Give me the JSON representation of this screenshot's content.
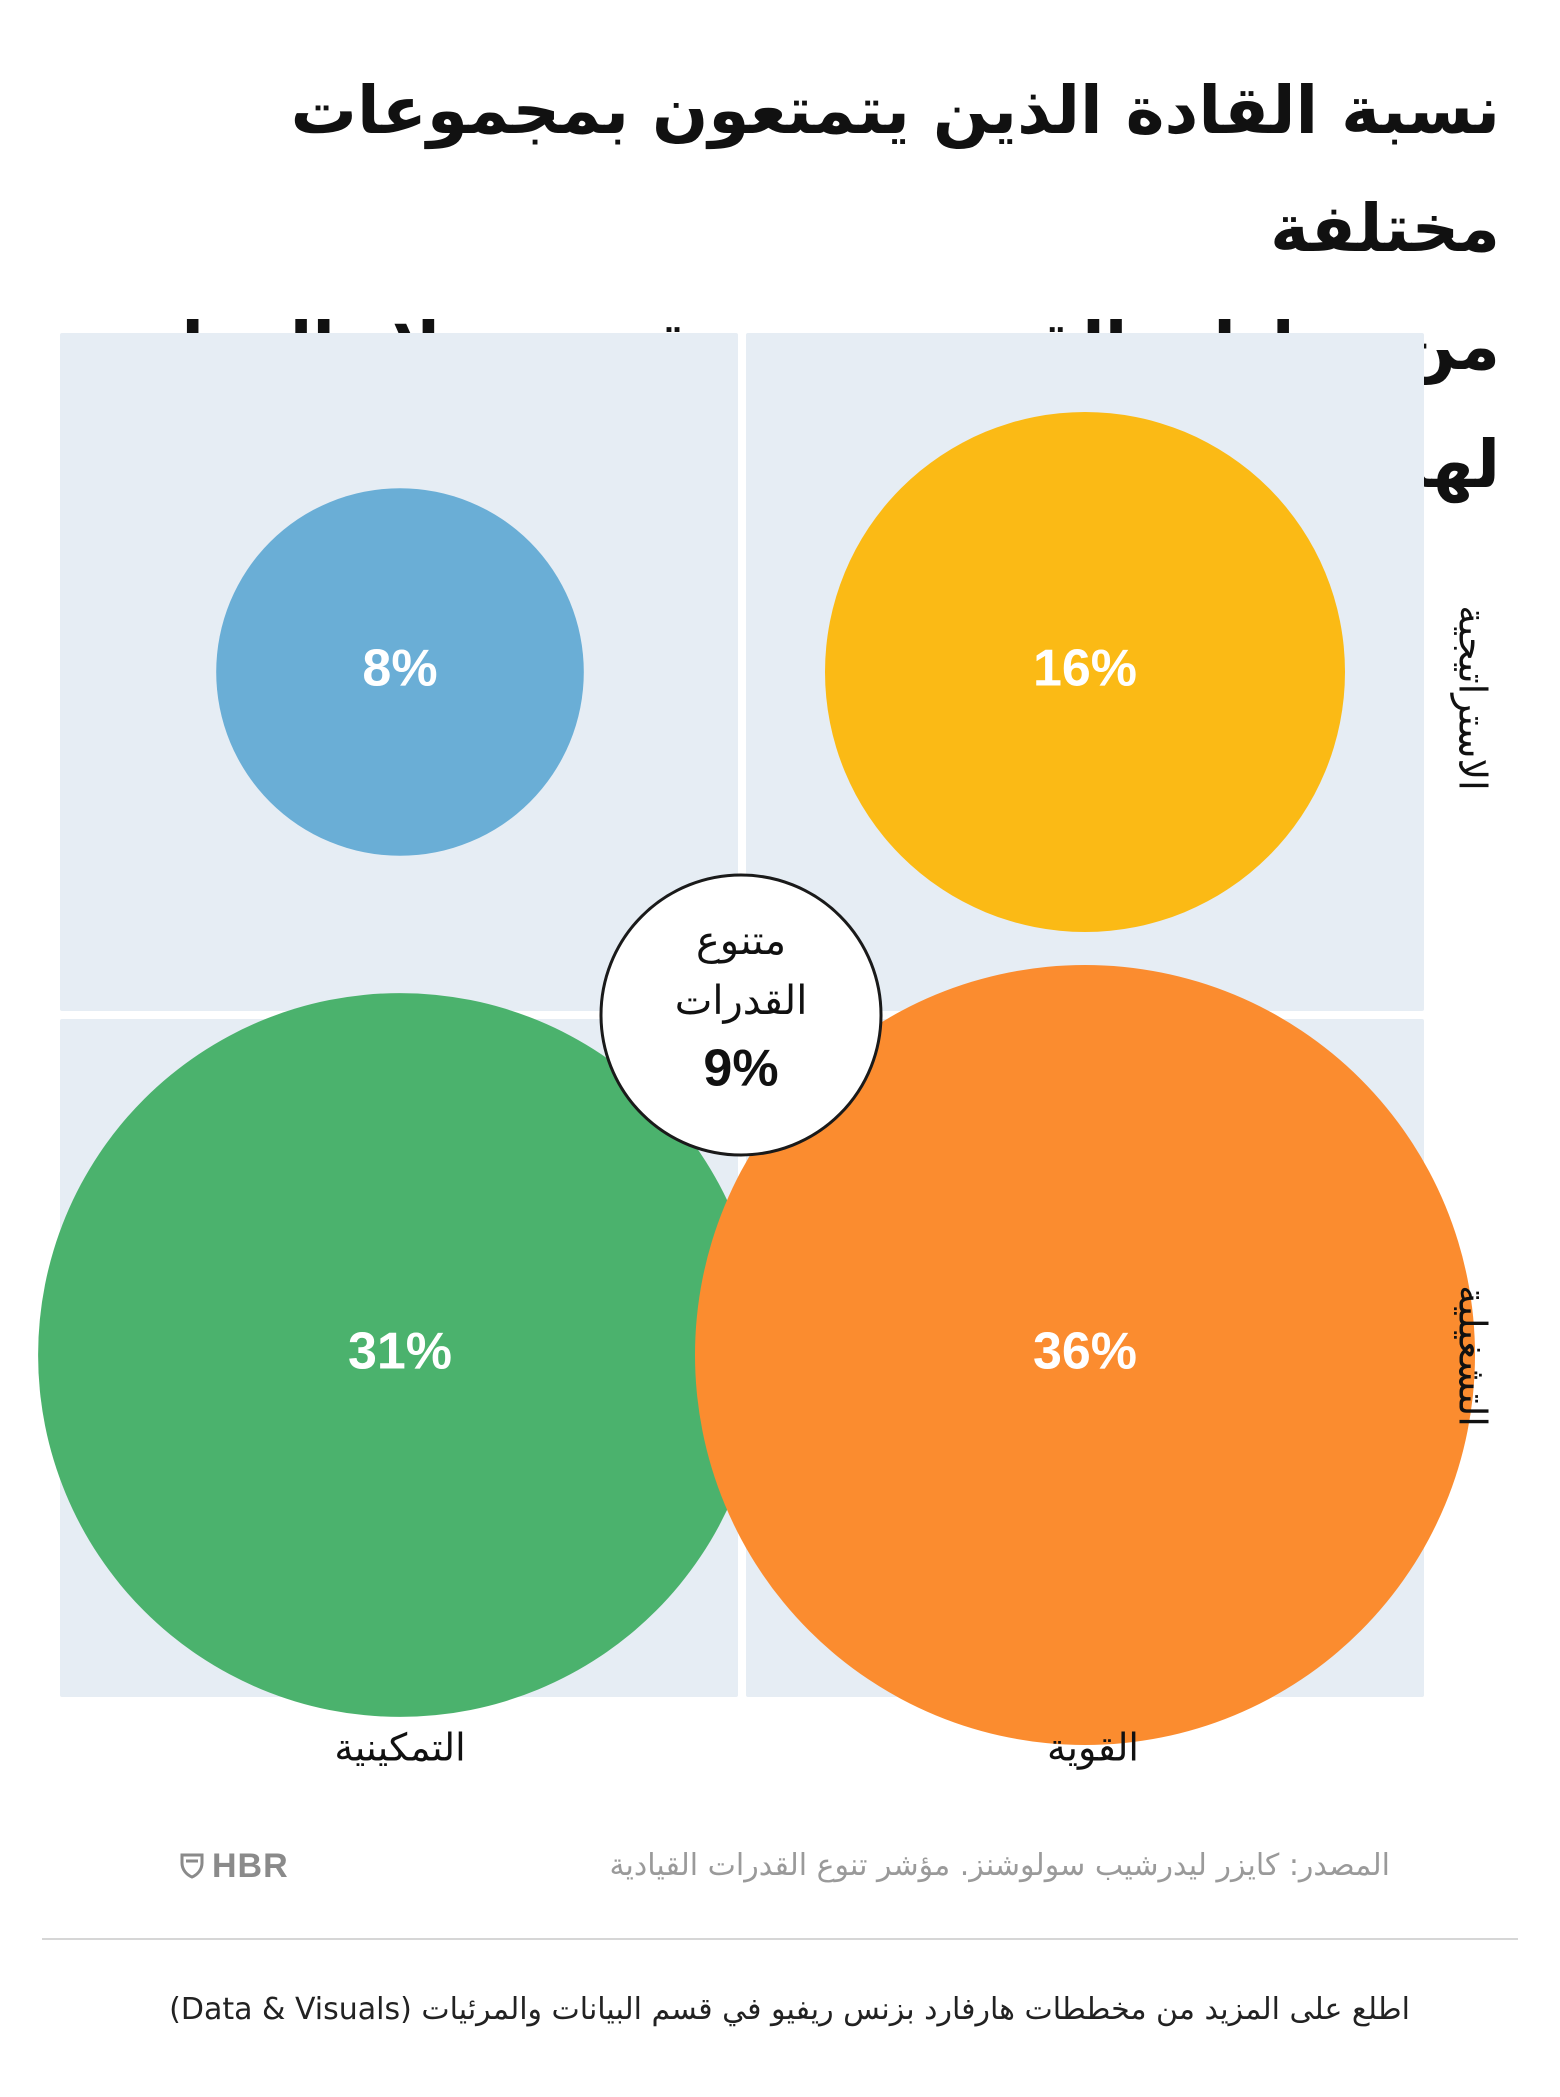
{
  "title": {
    "line1": "نسبة القادة الذين يتمتعون بمجموعات مختلفة",
    "line2": "من مواطن القوة حسب تقييم زملاء العمل لهم"
  },
  "colors": {
    "quadrant_bg": "#e6edf4",
    "strong_strategic": "#fbba15",
    "enabling_strategic": "#6aaed6",
    "enabling_operational": "#4bb26d",
    "strong_operational": "#fb8c2f",
    "center_border": "#1a1a1a"
  },
  "chart_data": {
    "type": "bubble-quadrant",
    "columns": [
      "القوية",
      "التمكينية"
    ],
    "rows": [
      "الاستراتيجية",
      "التشغيلية"
    ],
    "unit": "%",
    "bubbles": [
      {
        "column": "القوية",
        "row": "الاستراتيجية",
        "value": 16,
        "label": "16%",
        "color_key": "strong_strategic"
      },
      {
        "column": "التمكينية",
        "row": "الاستراتيجية",
        "value": 8,
        "label": "8%",
        "color_key": "enabling_strategic"
      },
      {
        "column": "التمكينية",
        "row": "التشغيلية",
        "value": 31,
        "label": "31%",
        "color_key": "enabling_operational"
      },
      {
        "column": "القوية",
        "row": "التشغيلية",
        "value": 36,
        "label": "36%",
        "color_key": "strong_operational"
      }
    ],
    "center": {
      "line1": "متنوع",
      "line2": "القدرات",
      "value": 9,
      "label": "9%"
    }
  },
  "source": "المصدر: كايزر ليدرشيب سولوشنز. مؤشر تنوع القدرات القيادية",
  "logo": {
    "text": "HBR",
    "icon": "hbr-shield-icon"
  },
  "footer": "اطلع على المزيد من مخططات هارفارد بزنس ريفيو في قسم البيانات والمرئيات (Data & Visuals)"
}
